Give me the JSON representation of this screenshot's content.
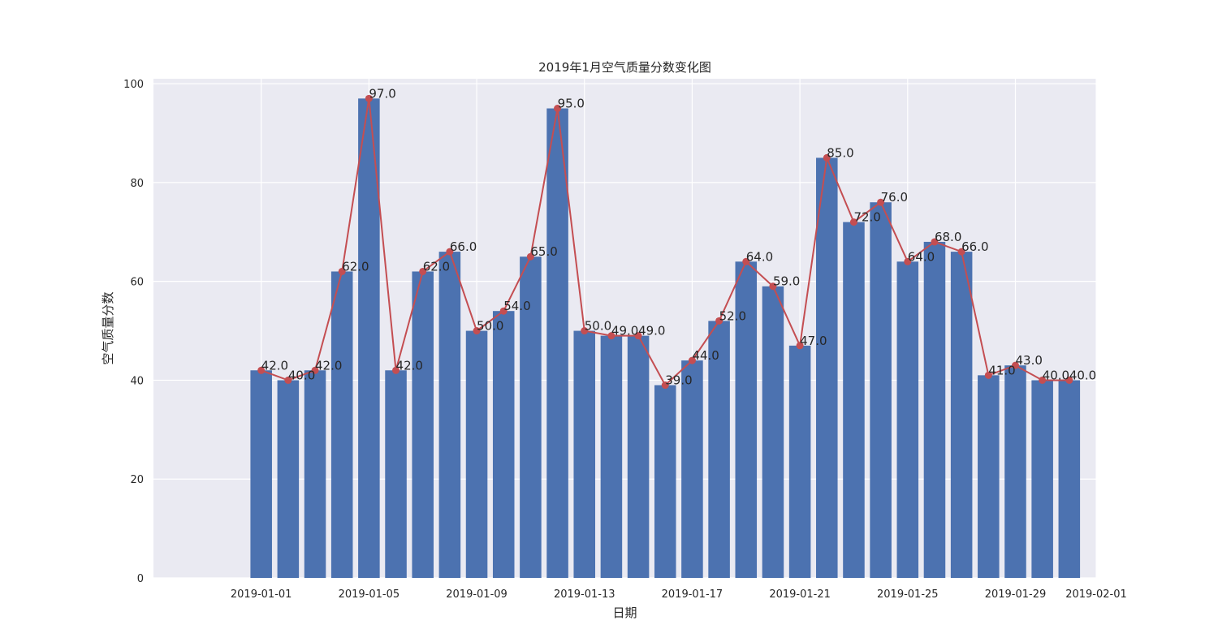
{
  "chart_data": {
    "type": "bar",
    "title": "2019年1月空气质量分数变化图",
    "xlabel": "日期",
    "ylabel": "空气质量分数",
    "ylim": [
      0,
      101
    ],
    "x_range": [
      "2018-12-28",
      "2019-02-01"
    ],
    "grid": true,
    "x": [
      "2019-01-01",
      "2019-01-02",
      "2019-01-03",
      "2019-01-04",
      "2019-01-05",
      "2019-01-06",
      "2019-01-07",
      "2019-01-08",
      "2019-01-09",
      "2019-01-10",
      "2019-01-11",
      "2019-01-12",
      "2019-01-13",
      "2019-01-14",
      "2019-01-15",
      "2019-01-16",
      "2019-01-17",
      "2019-01-18",
      "2019-01-19",
      "2019-01-20",
      "2019-01-21",
      "2019-01-22",
      "2019-01-23",
      "2019-01-24",
      "2019-01-25",
      "2019-01-26",
      "2019-01-27",
      "2019-01-28",
      "2019-01-29",
      "2019-01-30",
      "2019-01-31"
    ],
    "values": [
      42,
      40,
      42,
      62,
      97,
      42,
      62,
      66,
      50,
      54,
      65,
      95,
      50,
      49,
      49,
      39,
      44,
      52,
      64,
      59,
      47,
      85,
      72,
      76,
      64,
      68,
      66,
      41,
      43,
      40,
      40
    ],
    "data_labels": [
      "42.0",
      "40.0",
      "42.0",
      "62.0",
      "97.0",
      "42.0",
      "62.0",
      "66.0",
      "50.0",
      "54.0",
      "65.0",
      "95.0",
      "50.0",
      "49.0",
      "49.0",
      "39.0",
      "44.0",
      "52.0",
      "64.0",
      "59.0",
      "47.0",
      "85.0",
      "72.0",
      "76.0",
      "64.0",
      "68.0",
      "66.0",
      "41.0",
      "43.0",
      "40.0",
      "40.0"
    ],
    "x_ticks": [
      "2019-01-01",
      "2019-01-05",
      "2019-01-09",
      "2019-01-13",
      "2019-01-17",
      "2019-01-21",
      "2019-01-25",
      "2019-01-29",
      "2019-02-01"
    ],
    "y_ticks": [
      0,
      20,
      40,
      60,
      80,
      100
    ],
    "y_tick_labels": [
      "0",
      "20",
      "40",
      "60",
      "80",
      "100"
    ],
    "bar_color": "#4c72b0",
    "line_color": "#c44e52",
    "plot_background": "#eaeaf2",
    "grid_color": "#ffffff"
  }
}
